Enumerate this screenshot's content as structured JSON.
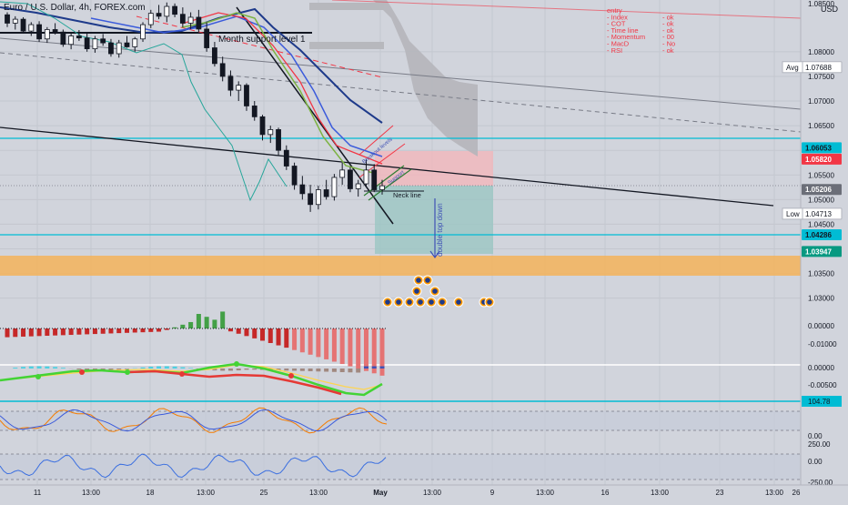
{
  "chart_data": {
    "type": "candlestick",
    "title": "Euro / U.S. Dollar, 4h, FOREX.com",
    "currency": "USD",
    "price_axis": {
      "ylim": [
        1.0268,
        1.0905
      ],
      "ticks": [
        "1.08000",
        "1.07500",
        "1.07000",
        "1.06500",
        "1.06000",
        "1.05500",
        "1.05000",
        "1.04500",
        "1.04000",
        "1.03500",
        "1.03000"
      ],
      "top_tick": "1.08500"
    },
    "price_labels": [
      {
        "name": "avg",
        "value": 1.07688,
        "text": "1.07688",
        "tag": "Avg",
        "style": "plain"
      },
      {
        "name": "line-upper",
        "value": 1.06053,
        "text": "1.06053",
        "style": "cyan"
      },
      {
        "name": "current",
        "value": 1.0582,
        "text": "1.05820",
        "style": "red"
      },
      {
        "name": "last",
        "value": 1.05206,
        "text": "1.05206",
        "style": "grey"
      },
      {
        "name": "low",
        "value": 1.04713,
        "text": "1.04713",
        "tag": "Low",
        "style": "plain"
      },
      {
        "name": "line-lower",
        "value": 1.04286,
        "text": "1.04286",
        "style": "cyan"
      },
      {
        "name": "target",
        "value": 1.03947,
        "text": "1.03947",
        "style": "green"
      }
    ],
    "x_ticks": [
      "11",
      "13:00",
      "18",
      "13:00",
      "25",
      "13:00",
      "May",
      "13:00",
      "9",
      "13:00",
      "16",
      "13:00",
      "23",
      "13:00",
      "26"
    ],
    "candles_ohlc": [
      [
        1.0875,
        1.088,
        1.085,
        1.0858
      ],
      [
        1.0858,
        1.0872,
        1.0845,
        1.0866
      ],
      [
        1.0866,
        1.087,
        1.0838,
        1.0842
      ],
      [
        1.0842,
        1.086,
        1.0832,
        1.0855
      ],
      [
        1.0855,
        1.0862,
        1.082,
        1.0826
      ],
      [
        1.0826,
        1.085,
        1.0818,
        1.0845
      ],
      [
        1.0845,
        1.0858,
        1.0835,
        1.084
      ],
      [
        1.084,
        1.0845,
        1.081,
        1.0815
      ],
      [
        1.0815,
        1.0838,
        1.0805,
        1.0832
      ],
      [
        1.0832,
        1.0844,
        1.0822,
        1.0828
      ],
      [
        1.0828,
        1.084,
        1.08,
        1.0806
      ],
      [
        1.0806,
        1.0832,
        1.0798,
        1.0826
      ],
      [
        1.0826,
        1.0836,
        1.0812,
        1.0818
      ],
      [
        1.0818,
        1.0826,
        1.079,
        1.0796
      ],
      [
        1.0796,
        1.0824,
        1.0788,
        1.0818
      ],
      [
        1.0818,
        1.0832,
        1.0808,
        1.081
      ],
      [
        1.081,
        1.083,
        1.08,
        1.0826
      ],
      [
        1.0826,
        1.086,
        1.082,
        1.0855
      ],
      [
        1.0855,
        1.0885,
        1.0848,
        1.0878
      ],
      [
        1.0878,
        1.0895,
        1.0866,
        1.0872
      ],
      [
        1.0872,
        1.09,
        1.086,
        1.0892
      ],
      [
        1.0892,
        1.0898,
        1.087,
        1.0876
      ],
      [
        1.0876,
        1.089,
        1.085,
        1.0858
      ],
      [
        1.0858,
        1.088,
        1.0846,
        1.087
      ],
      [
        1.087,
        1.0885,
        1.084,
        1.0846
      ],
      [
        1.0846,
        1.086,
        1.08,
        1.0808
      ],
      [
        1.0808,
        1.082,
        1.077,
        1.0776
      ],
      [
        1.0776,
        1.079,
        1.074,
        1.075
      ],
      [
        1.075,
        1.0762,
        1.071,
        1.0722
      ],
      [
        1.0722,
        1.074,
        1.07,
        1.0732
      ],
      [
        1.0732,
        1.0736,
        1.068,
        1.069
      ],
      [
        1.069,
        1.07,
        1.066,
        1.0668
      ],
      [
        1.0668,
        1.0672,
        1.062,
        1.0632
      ],
      [
        1.0632,
        1.065,
        1.0615,
        1.0642
      ],
      [
        1.0642,
        1.0646,
        1.059,
        1.06
      ],
      [
        1.06,
        1.061,
        1.056,
        1.0568
      ],
      [
        1.0568,
        1.0575,
        1.052,
        1.053
      ],
      [
        1.053,
        1.0548,
        1.05,
        1.0512
      ],
      [
        1.0512,
        1.053,
        1.0475,
        1.049
      ],
      [
        1.049,
        1.0528,
        1.048,
        1.052
      ],
      [
        1.052,
        1.054,
        1.05,
        1.0506
      ],
      [
        1.0506,
        1.0552,
        1.0498,
        1.0545
      ],
      [
        1.0545,
        1.0575,
        1.053,
        1.056
      ],
      [
        1.056,
        1.0566,
        1.0515,
        1.0522
      ],
      [
        1.0522,
        1.054,
        1.0506,
        1.0532
      ],
      [
        1.0532,
        1.0582,
        1.0525,
        1.056
      ],
      [
        1.056,
        1.0572,
        1.0515,
        1.052
      ],
      [
        1.052,
        1.054,
        1.051,
        1.0528
      ]
    ],
    "annotations": [
      {
        "text": "Month support level 1",
        "kind": "label"
      },
      {
        "text": "Neck line",
        "kind": "label"
      },
      {
        "text": "double top down",
        "kind": "label"
      },
      {
        "text": "Breakout levels",
        "kind": "label"
      },
      {
        "text": "Support",
        "kind": "label"
      }
    ],
    "checklist": [
      {
        "item": "entry",
        "status": ""
      },
      {
        "item": "- Index",
        "status": "- ok"
      },
      {
        "item": "- COT",
        "status": "- ok"
      },
      {
        "item": "- Time line",
        "status": "- ok"
      },
      {
        "item": "- Momentum",
        "status": "- 00"
      },
      {
        "item": "- MacD",
        "status": "- No"
      },
      {
        "item": "- RSI",
        "status": "- ok"
      }
    ],
    "indicator_1": {
      "name": "histogram",
      "ticks": [
        "0.00000",
        "-0.01000"
      ]
    },
    "indicator_2": {
      "name": "macd",
      "ticks": [
        "0.00000",
        "-0.00500"
      ]
    },
    "indicator_3": {
      "name": "stochastic",
      "ticks": [
        "104.78",
        "0.00"
      ]
    },
    "indicator_4": {
      "name": "cci",
      "ticks": [
        "250.00",
        "0.00",
        "-250.00"
      ]
    }
  },
  "colors": {
    "background": "#d1d4dc",
    "candle": "#131722",
    "cyan": "#00bcd4",
    "red_label": "#f23645",
    "green_label": "#089981",
    "orange_zone": "#f5b35a",
    "sell_zone": "#f2b7bb",
    "target_zone": "#9bc6c3",
    "cloud": "#b8b8bc",
    "checklist": "#f23645"
  }
}
